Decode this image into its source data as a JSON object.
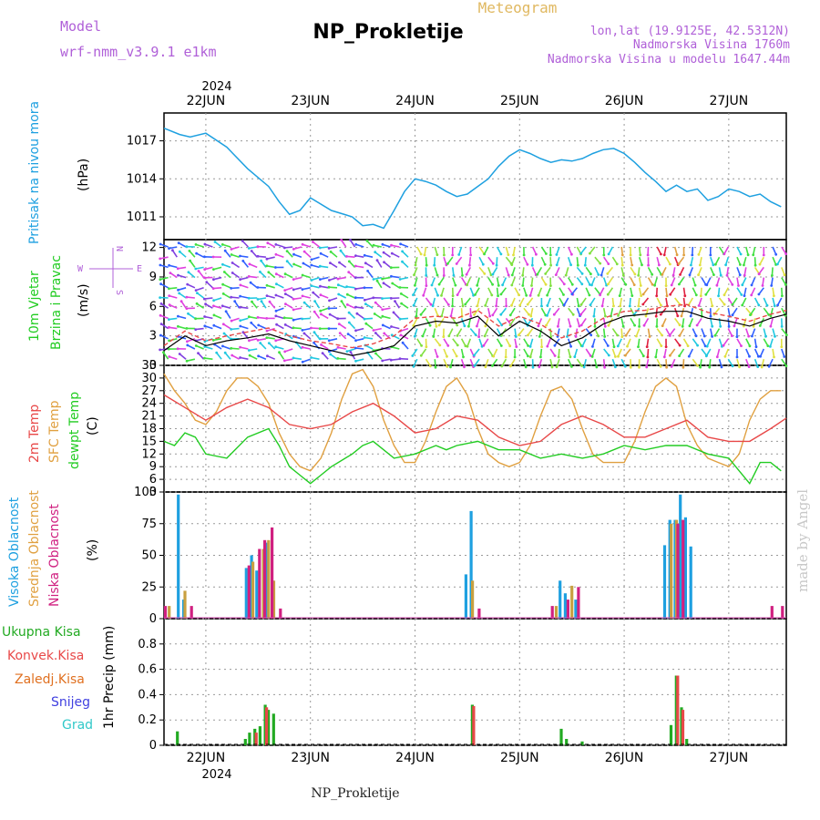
{
  "header": {
    "model_label": "Model",
    "model_value": "wrf-nmm_v3.9.1 e1km",
    "title": "NP_Prokletije",
    "meteogram_label": "Meteogram",
    "lonlat": "lon,lat (19.9125E, 42.5312N)",
    "altitude": "Nadmorska Visina 1760m",
    "model_altitude": "Nadmorska Visina u modelu 1647.44m",
    "footer": "NP_Prokletije",
    "watermark": "made by Angel"
  },
  "time_axis": {
    "year_top": "2024",
    "year_bottom": "2024",
    "day_labels": [
      "22JUN",
      "23JUN",
      "24JUN",
      "25JUN",
      "26JUN",
      "27JUN"
    ],
    "range_days": [
      21.6,
      27.55
    ]
  },
  "colors": {
    "pressure": "#1ea0e0",
    "t2m": "#e84848",
    "sfc": "#e0a040",
    "dewpoint": "#22cc22",
    "wind_speed": "#000000",
    "wind_gust": "#e84848",
    "high_cloud": "#1ea0e0",
    "mid_cloud": "#c8a040",
    "low_cloud": "#d02080",
    "total_precip": "#22aa22",
    "conv_precip": "#e84848",
    "frozen_precip": "#e07020",
    "snow": "#4040e0",
    "graupel": "#30c8c8"
  },
  "panels": {
    "pressure": {
      "labels": [
        "Pritisak na nivou mora",
        "(hPa)"
      ]
    },
    "wind": {
      "labels": [
        "10m Vjetar",
        "Brzina i Pravac",
        "(m/s)"
      ],
      "compass": {
        "n": "N",
        "s": "S",
        "e": "E",
        "w": "W"
      }
    },
    "temp": {
      "labels": [
        "2m Temp",
        "SFC Temp",
        "dewpt Temp",
        "(C)"
      ]
    },
    "cloud": {
      "labels": [
        "Visoka Oblacnost",
        "Srednja Oblacnost",
        "Niska Oblacnost",
        "(%)"
      ]
    },
    "precip": {
      "labels": [
        "Ukupna Kisa",
        "Konvek.Kisa",
        "Zaledj.Kisa",
        "Snijeg",
        "Grad",
        "1hr Precip (mm)"
      ]
    }
  },
  "chart_data": [
    {
      "type": "line",
      "ylabel": "(hPa)",
      "ylim": [
        1009.2,
        1019.2
      ],
      "yticks": [
        1011,
        1014,
        1017
      ],
      "grid": true,
      "series": [
        {
          "name": "Pritisak na nivou mora",
          "x": [
            21.6,
            21.75,
            21.85,
            22.0,
            22.2,
            22.4,
            22.6,
            22.7,
            22.8,
            22.9,
            23.0,
            23.2,
            23.4,
            23.5,
            23.6,
            23.7,
            23.8,
            23.9,
            24.0,
            24.1,
            24.2,
            24.3,
            24.4,
            24.5,
            24.6,
            24.7,
            24.8,
            24.9,
            25.0,
            25.1,
            25.2,
            25.3,
            25.4,
            25.5,
            25.6,
            25.7,
            25.8,
            25.9,
            26.0,
            26.1,
            26.2,
            26.3,
            26.4,
            26.5,
            26.6,
            26.7,
            26.8,
            26.9,
            27.0,
            27.1,
            27.2,
            27.3,
            27.4,
            27.5
          ],
          "y": [
            1018.0,
            1017.5,
            1017.3,
            1017.6,
            1016.5,
            1014.8,
            1013.4,
            1012.2,
            1011.2,
            1011.5,
            1012.5,
            1011.5,
            1011.0,
            1010.3,
            1010.4,
            1010.1,
            1011.5,
            1013.0,
            1014.0,
            1013.8,
            1013.5,
            1013.0,
            1012.6,
            1012.8,
            1013.4,
            1014.0,
            1015.0,
            1015.8,
            1016.3,
            1016.0,
            1015.6,
            1015.3,
            1015.5,
            1015.4,
            1015.6,
            1016.0,
            1016.3,
            1016.4,
            1016.0,
            1015.3,
            1014.5,
            1013.8,
            1013.0,
            1013.5,
            1013.0,
            1013.2,
            1012.3,
            1012.6,
            1013.2,
            1013.0,
            1012.6,
            1012.8,
            1012.2,
            1011.8
          ]
        }
      ]
    },
    {
      "type": "line",
      "ylabel": "(m/s)",
      "ylim": [
        0,
        12.8
      ],
      "yticks": [
        0,
        3,
        6,
        9,
        12
      ],
      "grid": true,
      "series": [
        {
          "name": "wind_speed",
          "x": [
            21.6,
            21.8,
            22.0,
            22.2,
            22.4,
            22.6,
            22.8,
            23.0,
            23.2,
            23.4,
            23.6,
            23.8,
            24.0,
            24.2,
            24.4,
            24.6,
            24.8,
            25.0,
            25.2,
            25.4,
            25.6,
            25.8,
            26.0,
            26.2,
            26.4,
            26.6,
            26.8,
            27.0,
            27.2,
            27.4,
            27.55
          ],
          "y": [
            1.5,
            3.0,
            2.0,
            2.5,
            2.8,
            3.2,
            2.5,
            2.0,
            1.5,
            1.0,
            1.4,
            2.0,
            4.0,
            4.5,
            4.3,
            5.0,
            3.0,
            4.5,
            3.5,
            2.0,
            2.8,
            4.2,
            5.0,
            5.2,
            5.5,
            5.5,
            4.8,
            4.5,
            4.0,
            4.8,
            5.2
          ]
        },
        {
          "name": "wind_gust",
          "x": [
            21.6,
            21.8,
            22.0,
            22.2,
            22.4,
            22.6,
            22.8,
            23.0,
            23.2,
            23.4,
            23.6,
            23.8,
            24.0,
            24.2,
            24.4,
            24.6,
            24.8,
            25.0,
            25.2,
            25.4,
            25.6,
            25.8,
            26.0,
            26.2,
            26.4,
            26.6,
            26.8,
            27.0,
            27.2,
            27.4,
            27.55
          ],
          "y": [
            2.0,
            3.5,
            2.5,
            3.0,
            3.4,
            3.8,
            3.0,
            2.5,
            2.2,
            1.8,
            2.2,
            3.0,
            4.8,
            5.0,
            4.8,
            5.6,
            4.0,
            5.0,
            4.2,
            2.8,
            3.5,
            4.8,
            5.5,
            5.6,
            6.0,
            6.2,
            5.4,
            5.0,
            4.5,
            5.2,
            5.6
          ]
        }
      ]
    },
    {
      "type": "line",
      "ylabel": "(C)",
      "ylim": [
        3,
        33
      ],
      "yticks": [
        3,
        6,
        9,
        12,
        15,
        18,
        21,
        24,
        27,
        30,
        33
      ],
      "grid": true,
      "series": [
        {
          "name": "2m Temp",
          "x": [
            21.6,
            21.8,
            22.0,
            22.2,
            22.4,
            22.6,
            22.8,
            23.0,
            23.2,
            23.4,
            23.6,
            23.8,
            24.0,
            24.2,
            24.4,
            24.6,
            24.8,
            25.0,
            25.2,
            25.4,
            25.6,
            25.8,
            26.0,
            26.2,
            26.4,
            26.6,
            26.8,
            27.0,
            27.2,
            27.4,
            27.55
          ],
          "y": [
            26,
            23,
            20,
            23,
            25,
            23,
            19,
            18,
            19,
            22,
            24,
            21,
            17,
            18,
            21,
            20,
            16,
            14,
            15,
            19,
            21,
            19,
            16,
            16,
            18,
            20,
            16,
            15,
            15,
            18,
            20.5
          ]
        },
        {
          "name": "SFC Temp",
          "x": [
            21.6,
            21.7,
            21.8,
            21.9,
            22.0,
            22.1,
            22.2,
            22.3,
            22.4,
            22.5,
            22.6,
            22.7,
            22.8,
            22.9,
            23.0,
            23.1,
            23.2,
            23.3,
            23.4,
            23.5,
            23.6,
            23.7,
            23.8,
            23.9,
            24.0,
            24.1,
            24.2,
            24.3,
            24.4,
            24.5,
            24.6,
            24.7,
            24.8,
            24.9,
            25.0,
            25.1,
            25.2,
            25.3,
            25.4,
            25.5,
            25.6,
            25.7,
            25.8,
            25.9,
            26.0,
            26.1,
            26.2,
            26.3,
            26.4,
            26.5,
            26.6,
            26.7,
            26.8,
            26.9,
            27.0,
            27.1,
            27.2,
            27.3,
            27.4,
            27.5
          ],
          "y": [
            31,
            27,
            24,
            20,
            19,
            22,
            27,
            30,
            30,
            28,
            24,
            17,
            12,
            9,
            8,
            11,
            17,
            25,
            31,
            32,
            28,
            20,
            14,
            10,
            10,
            15,
            22,
            28,
            30,
            26,
            18,
            12,
            10,
            9,
            10,
            14,
            21,
            27,
            28,
            25,
            18,
            12,
            10,
            10,
            10,
            15,
            22,
            28,
            30,
            28,
            19,
            14,
            11,
            10,
            9,
            12,
            20,
            25,
            27,
            27
          ]
        },
        {
          "name": "dewpt Temp",
          "x": [
            21.6,
            21.7,
            21.8,
            21.9,
            22.0,
            22.2,
            22.4,
            22.6,
            22.7,
            22.8,
            22.9,
            23.0,
            23.1,
            23.2,
            23.4,
            23.5,
            23.6,
            23.7,
            23.8,
            24.0,
            24.2,
            24.3,
            24.4,
            24.6,
            24.8,
            25.0,
            25.2,
            25.4,
            25.6,
            25.8,
            26.0,
            26.2,
            26.4,
            26.5,
            26.6,
            26.8,
            27.0,
            27.1,
            27.2,
            27.3,
            27.4,
            27.5
          ],
          "y": [
            15,
            14,
            17,
            16,
            12,
            11,
            16,
            18,
            14,
            9,
            7,
            5,
            7,
            9,
            12,
            14,
            15,
            13,
            11,
            12,
            14,
            13,
            14,
            15,
            13,
            13,
            11,
            12,
            11,
            12,
            14,
            13,
            14,
            14,
            14,
            12,
            11,
            8,
            5,
            10,
            10,
            8
          ]
        }
      ]
    },
    {
      "type": "bar",
      "ylabel": "(%)",
      "ylim": [
        0,
        100
      ],
      "yticks": [
        0,
        25,
        50,
        75,
        100
      ],
      "grid": true,
      "series": [
        {
          "name": "Visoka Oblacnost",
          "x": [
            21.75,
            21.8,
            22.4,
            22.45,
            22.5,
            22.6,
            22.65,
            24.5,
            24.55,
            25.4,
            25.45,
            25.55,
            26.4,
            26.45,
            26.5,
            26.55,
            26.6,
            26.65
          ],
          "y": [
            98,
            15,
            40,
            50,
            38,
            60,
            30,
            35,
            85,
            30,
            20,
            15,
            58,
            78,
            78,
            98,
            80,
            57
          ]
        },
        {
          "name": "Srednja Oblacnost",
          "x": [
            21.65,
            21.8,
            22.45,
            22.55,
            22.6,
            22.65,
            24.55,
            25.35,
            25.5,
            26.45,
            26.5
          ],
          "y": [
            10,
            22,
            45,
            55,
            62,
            30,
            30,
            10,
            26,
            75,
            78
          ]
        },
        {
          "name": "Niska Oblacnost",
          "x": [
            21.6,
            21.85,
            22.4,
            22.5,
            22.55,
            22.62,
            22.7,
            24.6,
            25.3,
            25.45,
            25.55,
            26.5,
            26.55,
            27.4,
            27.5
          ],
          "y": [
            10,
            10,
            42,
            55,
            62,
            72,
            8,
            8,
            10,
            15,
            25,
            75,
            78,
            10,
            10
          ]
        }
      ]
    },
    {
      "type": "bar",
      "ylabel": "1hr Precip (mm)",
      "ylim": [
        0,
        1.0
      ],
      "yticks": [
        0,
        0.2,
        0.4,
        0.6,
        0.8
      ],
      "grid": true,
      "series": [
        {
          "name": "Ukupna Kisa",
          "x": [
            21.73,
            22.38,
            22.42,
            22.47,
            22.52,
            22.57,
            22.6,
            22.65,
            24.55,
            25.4,
            25.45,
            25.6,
            26.45,
            26.5,
            26.55,
            26.6
          ],
          "y": [
            0.11,
            0.05,
            0.1,
            0.13,
            0.15,
            0.32,
            0.28,
            0.25,
            0.32,
            0.13,
            0.05,
            0.03,
            0.16,
            0.55,
            0.3,
            0.05
          ]
        },
        {
          "name": "Konvek.Kisa",
          "x": [
            22.47,
            22.57,
            24.55,
            26.5,
            26.55
          ],
          "y": [
            0.1,
            0.3,
            0.31,
            0.55,
            0.28
          ]
        }
      ]
    }
  ]
}
